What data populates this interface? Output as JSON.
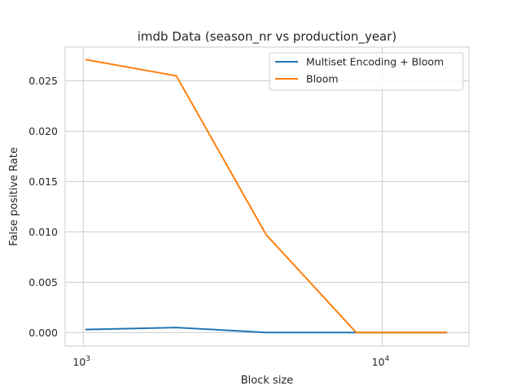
{
  "chart_data": {
    "type": "line",
    "title": "imdb Data (season_nr vs production_year)",
    "xlabel": "Block size",
    "ylabel": "False positive Rate",
    "xscale": "log",
    "xlim": [
      870,
      19500
    ],
    "ylim": [
      -0.00135,
      0.02835
    ],
    "x_ticks": [
      {
        "value": 1000,
        "base": "10",
        "exp": "3"
      },
      {
        "value": 10000,
        "base": "10",
        "exp": "4"
      }
    ],
    "y_ticks": [
      {
        "value": 0.0,
        "label": "0.000"
      },
      {
        "value": 0.005,
        "label": "0.005"
      },
      {
        "value": 0.01,
        "label": "0.010"
      },
      {
        "value": 0.015,
        "label": "0.015"
      },
      {
        "value": 0.02,
        "label": "0.020"
      },
      {
        "value": 0.025,
        "label": "0.025"
      }
    ],
    "grid": true,
    "legend_position": "top-right",
    "series": [
      {
        "name": "Multiset Encoding + Bloom",
        "color": "#1f77b4",
        "x": [
          1024,
          2048,
          4096,
          8192,
          16384
        ],
        "y": [
          0.0003,
          0.0005,
          0.0,
          0.0,
          0.0
        ]
      },
      {
        "name": "Bloom",
        "color": "#ff7f0e",
        "x": [
          1024,
          2048,
          4096,
          8192,
          16384
        ],
        "y": [
          0.0271,
          0.0255,
          0.0097,
          0.0,
          0.0
        ]
      }
    ]
  }
}
